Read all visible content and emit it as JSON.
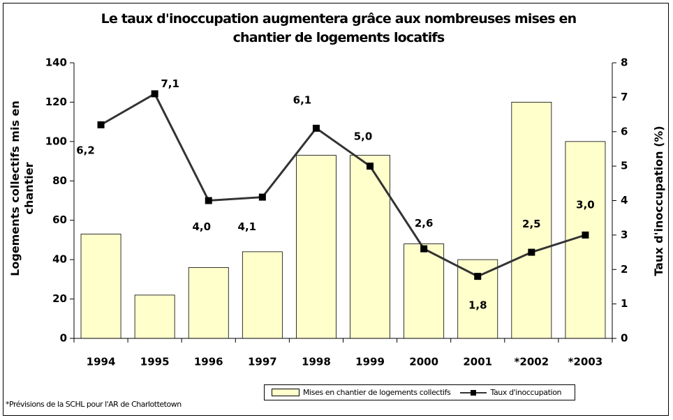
{
  "chart_data": {
    "type": "bar",
    "title": "Le taux d'inoccupation augmentera grâce aux nombreuses mises en chantier de logements locatifs",
    "ylabel": "Logements collectifs mis en chantier",
    "y2label": "Taux d'inoccupation (%)",
    "categories": [
      "1994",
      "1995",
      "1996",
      "1997",
      "1998",
      "1999",
      "2000",
      "2001",
      "*2002",
      "*2003"
    ],
    "series": [
      {
        "name": "Mises en chantier de logements collectifs",
        "type": "bar",
        "color": "#ffffcc",
        "values": [
          53,
          22,
          36,
          44,
          93,
          93,
          48,
          40,
          120,
          100
        ]
      },
      {
        "name": "Taux d'inoccupation",
        "type": "line",
        "axis": "y2",
        "color": "#333333",
        "values": [
          6.2,
          7.1,
          4.0,
          4.1,
          6.1,
          5.0,
          2.6,
          1.8,
          2.5,
          3.0
        ],
        "value_labels": [
          "6,2",
          "7,1",
          "4,0",
          "4,1",
          "6,1",
          "5,0",
          "2,6",
          "1,8",
          "2,5",
          "3,0"
        ]
      }
    ],
    "ylim": [
      0,
      140
    ],
    "yticks": [
      0,
      20,
      40,
      60,
      80,
      100,
      120,
      140
    ],
    "y2lim": [
      0,
      8
    ],
    "y2ticks": [
      0,
      1,
      2,
      3,
      4,
      5,
      6,
      7,
      8
    ],
    "footnote": "*Prévisions de la SCHL pour l'AR de Charlottetown"
  }
}
